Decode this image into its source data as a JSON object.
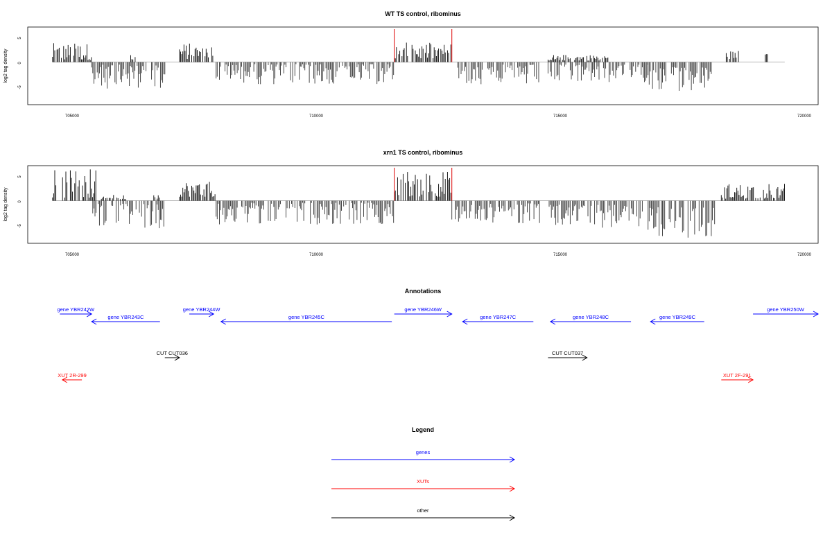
{
  "colors": {
    "positive_bar": "#000000",
    "negative_bar": "#333333",
    "highlight_line": "#dd0000",
    "gene": "#0000ff",
    "xut": "#ff0000",
    "other": "#000000"
  },
  "chart_data": [
    {
      "type": "bar",
      "title": "WT TS control, ribominus",
      "ylabel": "log2 tag density",
      "xlim": [
        704000,
        720300
      ],
      "ylim": [
        -8.5,
        7
      ],
      "x_ticks": [
        "705000",
        "710000",
        "715000",
        "720000"
      ],
      "y_ticks": [
        "5",
        "0",
        "-5"
      ],
      "baseline_range": [
        704600,
        719600
      ],
      "highlight_positions": [
        711600,
        712780
      ],
      "segments": [
        {
          "start": 704600,
          "end": 705400,
          "min": 0.4,
          "max": 3.8,
          "sign": 1
        },
        {
          "start": 705400,
          "end": 706900,
          "min": 0.5,
          "max": 5.3,
          "sign": -1
        },
        {
          "start": 706200,
          "end": 706300,
          "min": 0.5,
          "max": 2.0,
          "sign": 1
        },
        {
          "start": 707200,
          "end": 707900,
          "min": 0.6,
          "max": 3.8,
          "sign": 1
        },
        {
          "start": 707950,
          "end": 711600,
          "min": 0.4,
          "max": 4.5,
          "sign": -1
        },
        {
          "start": 711600,
          "end": 712780,
          "min": 0.6,
          "max": 3.9,
          "sign": 1
        },
        {
          "start": 712900,
          "end": 714600,
          "min": 0.5,
          "max": 4.6,
          "sign": -1
        },
        {
          "start": 714750,
          "end": 716800,
          "min": 0.5,
          "max": 4.2,
          "sign": -1
        },
        {
          "start": 714750,
          "end": 716000,
          "min": 0.3,
          "max": 1.5,
          "sign": 1
        },
        {
          "start": 716800,
          "end": 718100,
          "min": 1.0,
          "max": 6.0,
          "sign": -1
        },
        {
          "start": 718400,
          "end": 718700,
          "min": 0.5,
          "max": 2.3,
          "sign": 1
        },
        {
          "start": 719200,
          "end": 719250,
          "min": 1.5,
          "max": 1.6,
          "sign": 1
        }
      ]
    },
    {
      "type": "bar",
      "title": "xrn1 TS control, ribominus",
      "ylabel": "log2 tag density",
      "xlim": [
        704000,
        720300
      ],
      "ylim": [
        -8.5,
        7
      ],
      "x_ticks": [
        "705000",
        "710000",
        "715000",
        "720000"
      ],
      "y_ticks": [
        "5",
        "0",
        "-5"
      ],
      "baseline_range": [
        704600,
        719600
      ],
      "highlight_positions": [
        711600,
        712780
      ],
      "segments": [
        {
          "start": 704600,
          "end": 705500,
          "min": 0.6,
          "max": 6.5,
          "sign": 1
        },
        {
          "start": 705400,
          "end": 706900,
          "min": 0.6,
          "max": 5.5,
          "sign": -1
        },
        {
          "start": 705600,
          "end": 706100,
          "min": 0.3,
          "max": 1.2,
          "sign": 1
        },
        {
          "start": 706650,
          "end": 706800,
          "min": 0.3,
          "max": 1.6,
          "sign": 1
        },
        {
          "start": 707200,
          "end": 707950,
          "min": 0.8,
          "max": 4.0,
          "sign": 1
        },
        {
          "start": 707950,
          "end": 711600,
          "min": 0.4,
          "max": 4.8,
          "sign": -1
        },
        {
          "start": 711600,
          "end": 712780,
          "min": 0.8,
          "max": 6.2,
          "sign": 1
        },
        {
          "start": 712780,
          "end": 714600,
          "min": 0.5,
          "max": 4.5,
          "sign": -1
        },
        {
          "start": 714750,
          "end": 716700,
          "min": 0.8,
          "max": 5.5,
          "sign": -1
        },
        {
          "start": 716800,
          "end": 718200,
          "min": 1.2,
          "max": 7.5,
          "sign": -1
        },
        {
          "start": 718300,
          "end": 719600,
          "min": 0.4,
          "max": 3.5,
          "sign": 1
        }
      ]
    }
  ],
  "annotations": {
    "title": "Annotations",
    "xlim": [
      704000,
      720300
    ],
    "features": [
      {
        "label": "gene YBR242W",
        "category": "gene",
        "start": 704750,
        "end": 705400,
        "strand": "+",
        "row": 0
      },
      {
        "label": "gene YBR243C",
        "category": "gene",
        "start": 705400,
        "end": 706800,
        "strand": "-",
        "row": 1
      },
      {
        "label": "gene YBR244W",
        "category": "gene",
        "start": 707400,
        "end": 707900,
        "strand": "+",
        "row": 0
      },
      {
        "label": "gene YBR245C",
        "category": "gene",
        "start": 708050,
        "end": 711550,
        "strand": "-",
        "row": 1
      },
      {
        "label": "gene YBR246W",
        "category": "gene",
        "start": 711600,
        "end": 712780,
        "strand": "+",
        "row": 0
      },
      {
        "label": "gene YBR247C",
        "category": "gene",
        "start": 713000,
        "end": 714450,
        "strand": "-",
        "row": 1
      },
      {
        "label": "gene YBR248C",
        "category": "gene",
        "start": 714800,
        "end": 716450,
        "strand": "-",
        "row": 1
      },
      {
        "label": "gene YBR249C",
        "category": "gene",
        "start": 716850,
        "end": 717950,
        "strand": "-",
        "row": 1
      },
      {
        "label": "gene YBR250W",
        "category": "gene",
        "start": 718950,
        "end": 720300,
        "strand": "+",
        "row": 0
      },
      {
        "label": "CUT CUT036",
        "category": "other",
        "start": 706900,
        "end": 707200,
        "strand": "+",
        "row": 2
      },
      {
        "label": "CUT CUT037",
        "category": "other",
        "start": 714750,
        "end": 715550,
        "strand": "+",
        "row": 2
      },
      {
        "label": "XUT 2R-299",
        "category": "xut",
        "start": 704800,
        "end": 705200,
        "strand": "-",
        "row": 3
      },
      {
        "label": "XUT 2F-291",
        "category": "xut",
        "start": 718300,
        "end": 718950,
        "strand": "+",
        "row": 3
      }
    ]
  },
  "legend": {
    "title": "Legend",
    "items": [
      {
        "label": "genes",
        "category": "gene"
      },
      {
        "label": "XUTs",
        "category": "xut"
      },
      {
        "label": "other",
        "category": "other"
      }
    ]
  }
}
